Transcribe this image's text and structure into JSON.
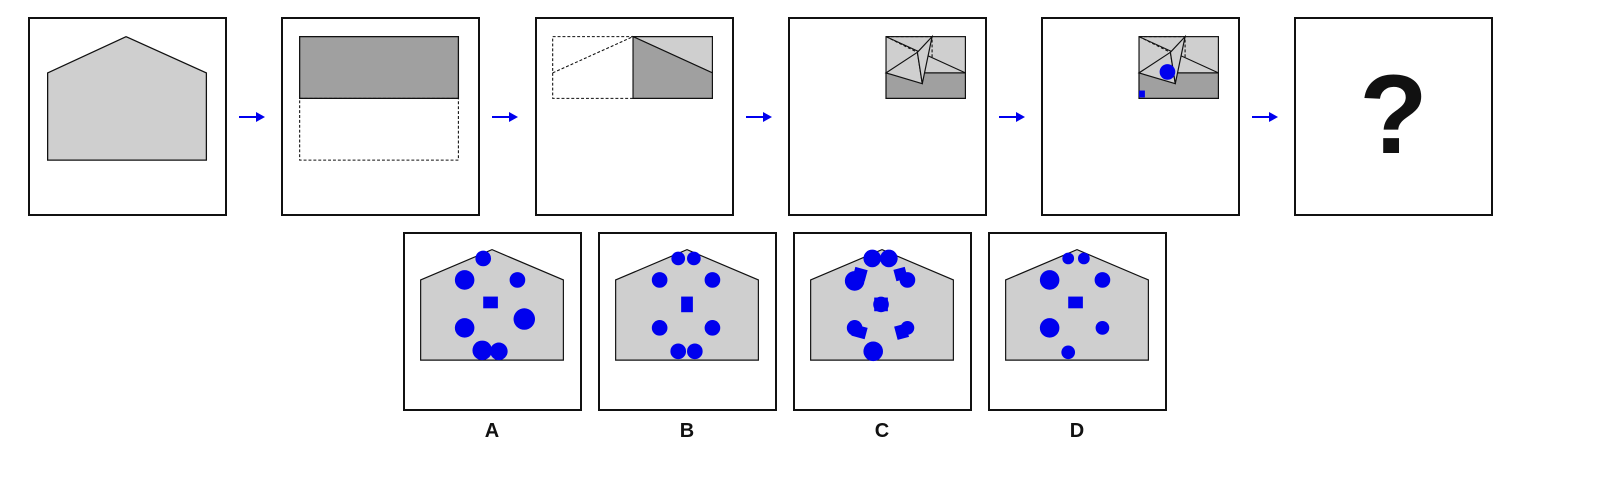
{
  "sequence": {
    "steps": [
      {
        "id": "step-1",
        "description": "house"
      },
      {
        "id": "step-2",
        "description": "fold-1"
      },
      {
        "id": "step-3",
        "description": "fold-2"
      },
      {
        "id": "step-4",
        "description": "fold-3"
      },
      {
        "id": "step-5",
        "description": "punch"
      }
    ],
    "question_mark": "?"
  },
  "options": [
    {
      "label": "A"
    },
    {
      "label": "B"
    },
    {
      "label": "C"
    },
    {
      "label": "D"
    }
  ],
  "colors": {
    "paper": "#cfcfcf",
    "paper_folded": "#a0a0a0",
    "hole": "#0000ee",
    "arrow": "#0000ee",
    "outline": "#111111"
  }
}
